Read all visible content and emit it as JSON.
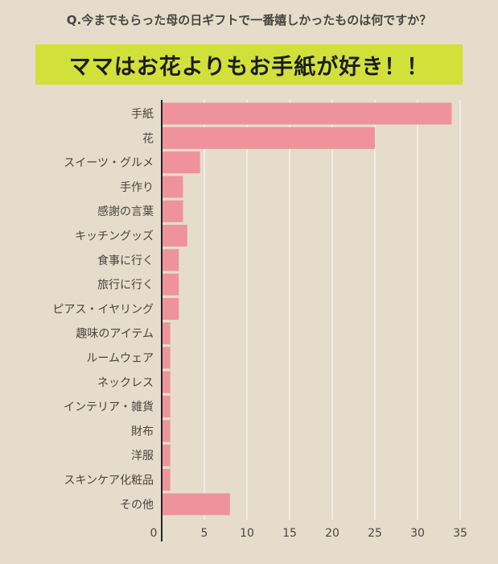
{
  "header": {
    "question": "Q.今までもらった母の日ギフトで一番嬉しかったものは何ですか？",
    "banner": "ママはお花よりもお手紙が好き！！"
  },
  "colors": {
    "background": "#e5dccb",
    "banner": "#d2e03a",
    "bar": "#ee939b",
    "grid": "#fbf8f2",
    "axis": "#222222"
  },
  "chart_data": {
    "type": "bar",
    "orientation": "horizontal",
    "categories": [
      "手紙",
      "花",
      "スイーツ・グルメ",
      "手作り",
      "感謝の言葉",
      "キッチングッズ",
      "食事に行く",
      "旅行に行く",
      "ピアス・イヤリング",
      "趣味のアイテム",
      "ルームウェア",
      "ネックレス",
      "インテリア・雑貨",
      "財布",
      "洋服",
      "スキンケア化粧品",
      "その他"
    ],
    "values": [
      34,
      25,
      4.5,
      2.5,
      2.5,
      3,
      2,
      2,
      2,
      1,
      1,
      1,
      1,
      1,
      1,
      1,
      8
    ],
    "xticks": [
      0,
      5,
      10,
      15,
      20,
      25,
      30,
      35
    ],
    "xlim": [
      0,
      37
    ],
    "grid": true
  }
}
